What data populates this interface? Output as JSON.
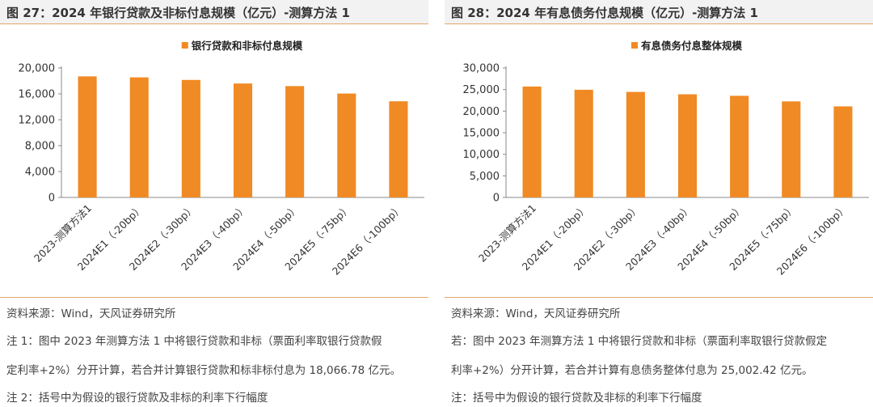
{
  "charts": [
    {
      "title": "图 27：2024 年银行贷款及非标付息规模（亿元）-测算方法 1",
      "notes": [
        "资料来源：Wind，天风证券研究所",
        "注 1：图中 2023 年测算方法 1 中将银行贷款和非标（票面利率取银行贷款假",
        "定利率+2%）分开计算，若合并计算银行贷款和标非标付息为 18,066.78 亿元。",
        "注 2：括号中为假设的银行贷款及非标的利率下行幅度"
      ],
      "chart_data": {
        "type": "bar",
        "categories": [
          "2023-测算方法1",
          "2024E1（-20bp）",
          "2024E2（-30bp）",
          "2024E3（-40bp）",
          "2024E4（-50bp）",
          "2024E5（-75bp）",
          "2024E6（-100bp）"
        ],
        "series": [
          {
            "name": "银行贷款和非标付息规模",
            "values": [
              18700,
              18550,
              18150,
              17600,
              17200,
              16050,
              14850
            ]
          }
        ],
        "ylim": [
          0,
          20000
        ],
        "yticks": [
          "0",
          "4,000",
          "8,000",
          "12,000",
          "16,000",
          "20,000"
        ],
        "ytick_values": [
          0,
          4000,
          8000,
          12000,
          16000,
          20000
        ],
        "color": "#f08a24",
        "legend": "top-center",
        "grid": false
      }
    },
    {
      "title": "图 28：2024 年有息债务付息规模（亿元）-测算方法 1",
      "notes": [
        "资料来源：Wind，天风证券研究所",
        "若：图中 2023 年测算方法 1 中将银行贷款和非标（票面利率取银行贷款假定",
        "利率+2%）分开计算，若合并计算有息债务整体付息为 25,002.42 亿元。",
        "注：括号中为假设的银行贷款及非标的利率下行幅度"
      ],
      "chart_data": {
        "type": "bar",
        "categories": [
          "2023-测算方法1",
          "2024E1（-20bp）",
          "2024E2（-30bp）",
          "2024E3（-40bp）",
          "2024E4（-50bp）",
          "2024E5（-75bp）",
          "2024E6（-100bp）"
        ],
        "series": [
          {
            "name": "有息债务付息整体规模",
            "values": [
              25700,
              24950,
              24450,
              23900,
              23550,
              22250,
              21100
            ]
          }
        ],
        "ylim": [
          0,
          30000
        ],
        "yticks": [
          "0",
          "5,000",
          "10,000",
          "15,000",
          "20,000",
          "25,000",
          "30,000"
        ],
        "ytick_values": [
          0,
          5000,
          10000,
          15000,
          20000,
          25000,
          30000
        ],
        "color": "#f08a24",
        "legend": "top-center",
        "grid": false
      }
    }
  ]
}
